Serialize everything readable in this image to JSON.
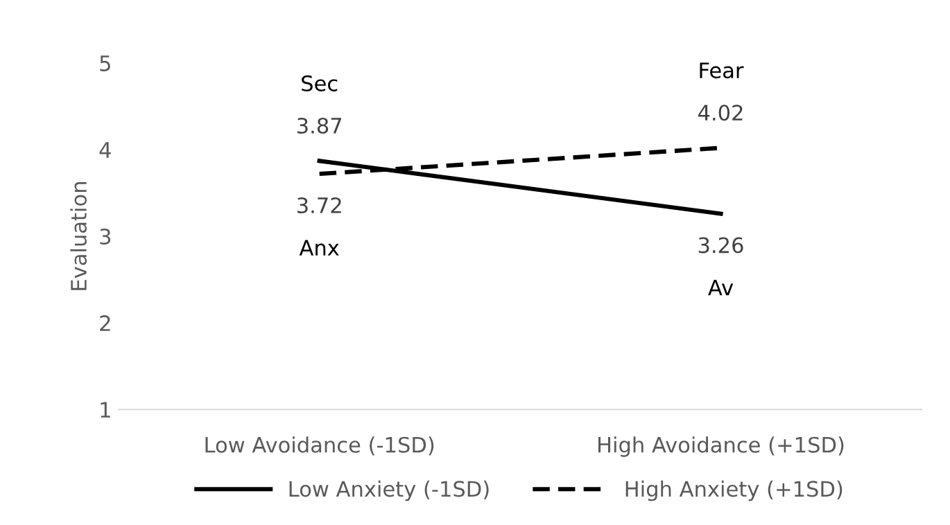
{
  "chart_data": {
    "type": "line",
    "ylabel": "Evaluation",
    "categories": [
      "Low Avoidance (-1SD)",
      "High Avoidance (+1SD)"
    ],
    "series": [
      {
        "name": "Low Anxiety (-1SD)",
        "color": "#000000",
        "values": [
          3.87,
          3.26
        ],
        "line_style": "solid"
      },
      {
        "name": "High Anxiety (+1SD)",
        "color": "#000000",
        "values": [
          3.72,
          4.02
        ],
        "line_style": "dashed"
      }
    ],
    "ylim": [
      1,
      5
    ],
    "yticks": [
      1,
      2,
      3,
      4,
      5
    ],
    "grid": false,
    "legend": "bottom",
    "data_labels": true,
    "marker": "none",
    "annotations": [
      "Sec",
      "Anx",
      "Fear",
      "Av"
    ]
  }
}
